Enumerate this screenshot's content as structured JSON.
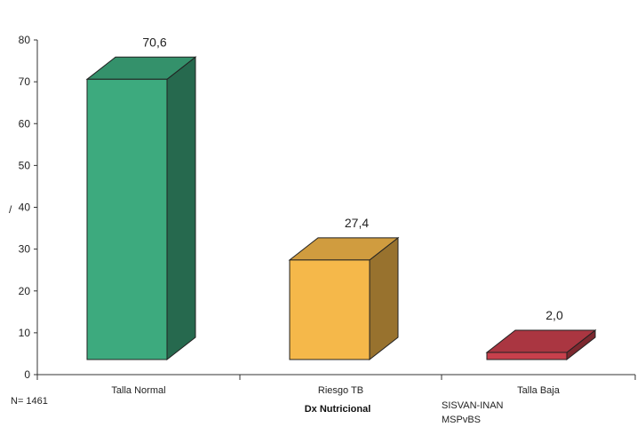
{
  "chart_data": {
    "type": "bar",
    "categories": [
      "Talla Normal",
      "Riesgo TB",
      "Talla Baja"
    ],
    "values": [
      70.6,
      27.4,
      2.0
    ],
    "value_labels": [
      "70,6",
      "27,4",
      "2,0"
    ],
    "colors": [
      "#3daa7e",
      "#f5b84a",
      "#c8404c"
    ],
    "xlabel": "Dx Nutricional",
    "ylabel": "/",
    "ylim": [
      0,
      80
    ],
    "yticks": [
      0,
      10,
      20,
      30,
      40,
      50,
      60,
      70,
      80
    ],
    "grid": false,
    "style": "3d-bar"
  },
  "notes": {
    "sample_size": "N= 1461",
    "source_line1": "SISVAN-INAN",
    "source_line2": "MSPvBS"
  }
}
